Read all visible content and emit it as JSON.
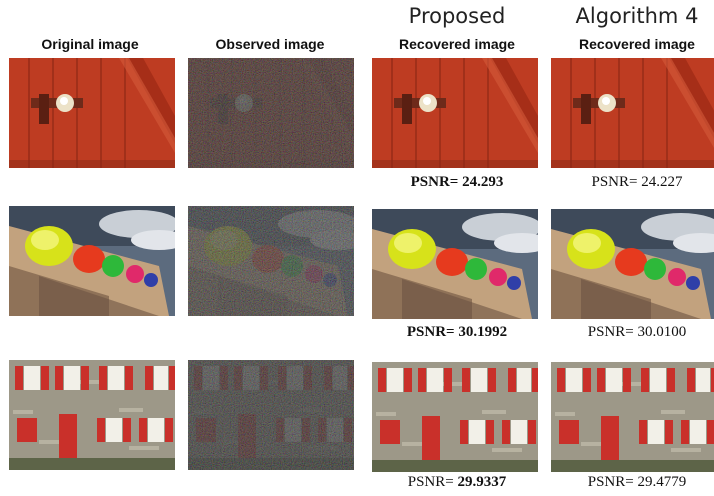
{
  "headers": {
    "col1": "Original image",
    "col2": "Observed image",
    "col3_top": "Proposed",
    "col3": "Recovered image",
    "col4_top": "Algorithm 4",
    "col4": "Recovered image"
  },
  "psnr_prefix": "PSNR= ",
  "rows": [
    {
      "proposed": "24.293",
      "algo4": "24.227"
    },
    {
      "proposed": "30.1992",
      "algo4": "30.0100"
    },
    {
      "proposed": "29.9337",
      "algo4": "29.4779"
    }
  ]
}
